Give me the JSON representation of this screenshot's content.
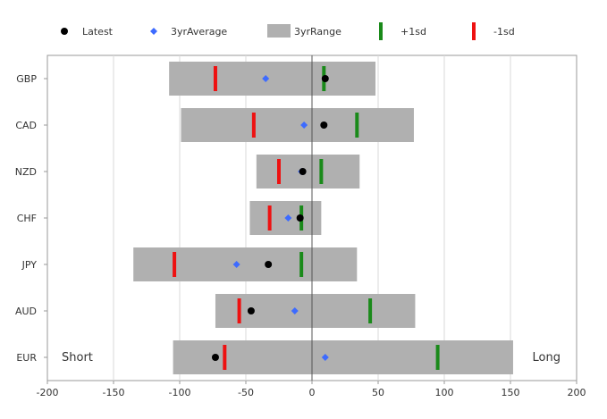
{
  "chart_data": {
    "type": "range-dot",
    "legend": {
      "placement": "top",
      "items": [
        {
          "key": "latest",
          "label": "Latest",
          "marker": "circle",
          "color": "#000000"
        },
        {
          "key": "avg",
          "label": "3yrAverage",
          "marker": "diamond",
          "color": "#3d6bff"
        },
        {
          "key": "range",
          "label": "3yrRange",
          "marker": "rect",
          "color": "#b0b0b0"
        },
        {
          "key": "plus1sd",
          "label": "+1sd",
          "marker": "vbar",
          "color": "#1a8a1a"
        },
        {
          "key": "minus1sd",
          "label": "-1sd",
          "marker": "vbar",
          "color": "#ee1111"
        }
      ]
    },
    "categories": [
      "GBP",
      "CAD",
      "NZD",
      "CHF",
      "JPY",
      "AUD",
      "EUR"
    ],
    "series": {
      "range_min": [
        -108,
        -99,
        -42,
        -47,
        -135,
        -73,
        -105
      ],
      "range_max": [
        48,
        77,
        36,
        7,
        34,
        78,
        152
      ],
      "latest": [
        10,
        9,
        -7,
        -9,
        -33,
        -46,
        -73
      ],
      "avg": [
        -35,
        -6,
        -8,
        -18,
        -57,
        -13,
        10
      ],
      "plus1sd": [
        9,
        34,
        7,
        -8,
        -8,
        44,
        95
      ],
      "minus1sd": [
        -73,
        -44,
        -25,
        -32,
        -104,
        -55,
        -66
      ]
    },
    "xlim": [
      -200,
      200
    ],
    "xticks": [
      -200,
      -150,
      -100,
      -50,
      0,
      50,
      100,
      150,
      200
    ],
    "grid": true,
    "annotations": {
      "left": "Short",
      "right": "Long"
    },
    "colors": {
      "range": "#b0b0b0",
      "latest": "#000000",
      "avg": "#3d6bff",
      "plus1sd": "#1a8a1a",
      "minus1sd": "#ee1111",
      "grid": "#d9d9d9",
      "axis": "#555555"
    }
  }
}
